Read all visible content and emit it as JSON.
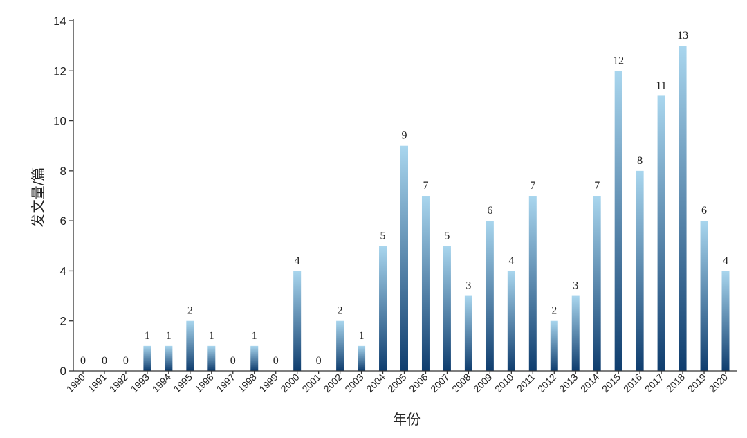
{
  "chart_data": {
    "type": "bar",
    "title": "",
    "xlabel": "年份",
    "ylabel": "发文量/篇",
    "ylim": [
      0,
      14
    ],
    "yticks": [
      0,
      2,
      4,
      6,
      8,
      10,
      12,
      14
    ],
    "grid": false,
    "categories": [
      "1990",
      "1991",
      "1992",
      "1993",
      "1994",
      "1995",
      "1996",
      "1997",
      "1998",
      "1999",
      "2000",
      "2001",
      "2002",
      "2003",
      "2004",
      "2005",
      "2006",
      "2007",
      "2008",
      "2009",
      "2010",
      "2011",
      "2012",
      "2013",
      "2014",
      "2015",
      "2016",
      "2017",
      "2018",
      "2019",
      "2020"
    ],
    "values": [
      0,
      0,
      0,
      1,
      1,
      2,
      1,
      0,
      1,
      0,
      4,
      0,
      2,
      1,
      5,
      9,
      7,
      5,
      3,
      6,
      4,
      7,
      2,
      3,
      7,
      12,
      8,
      11,
      13,
      6,
      4
    ],
    "bar_gradient": {
      "top": "#a9d6ee",
      "bottom": "#0f3d6e"
    }
  }
}
